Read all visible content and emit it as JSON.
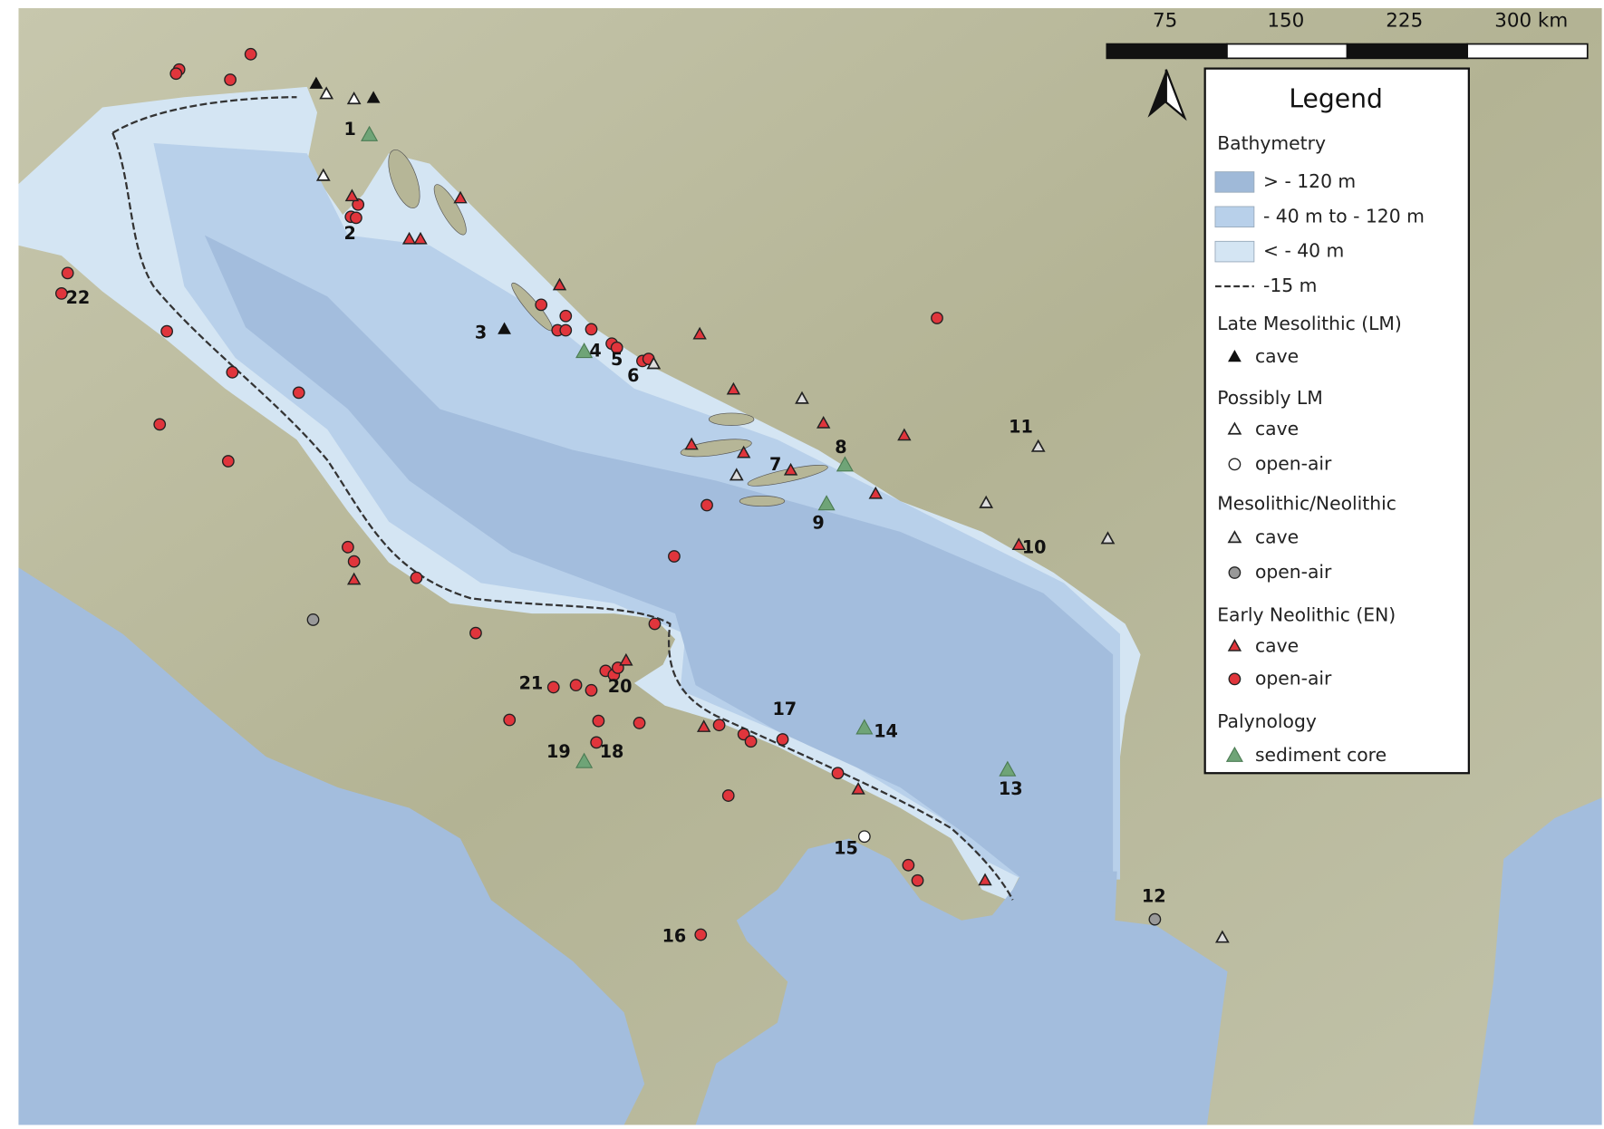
{
  "scale_bar": {
    "labels": [
      "75",
      "150",
      "225",
      "300 km"
    ]
  },
  "legend": {
    "title": "Legend",
    "sections": [
      {
        "heading": "Bathymetry",
        "items": [
          "> - 120 m",
          "- 40 m to - 120 m",
          "< - 40 m",
          "-15 m"
        ]
      },
      {
        "heading": "Late Mesolithic  (LM)",
        "items": [
          "cave"
        ]
      },
      {
        "heading": "Possibly LM",
        "items": [
          "cave",
          "open-air"
        ]
      },
      {
        "heading": "Mesolithic/Neolithic",
        "items": [
          "cave",
          "open-air"
        ]
      },
      {
        "heading": "Early Neolithic  (EN)",
        "items": [
          "cave",
          "open-air"
        ]
      },
      {
        "heading": "Palynology",
        "items": [
          "sediment core"
        ]
      }
    ]
  },
  "site_labels": [
    "1",
    "2",
    "3",
    "4",
    "5",
    "6",
    "7",
    "8",
    "9",
    "10",
    "11",
    "12",
    "13",
    "14",
    "15",
    "16",
    "17",
    "18",
    "19",
    "20",
    "21",
    "22"
  ]
}
